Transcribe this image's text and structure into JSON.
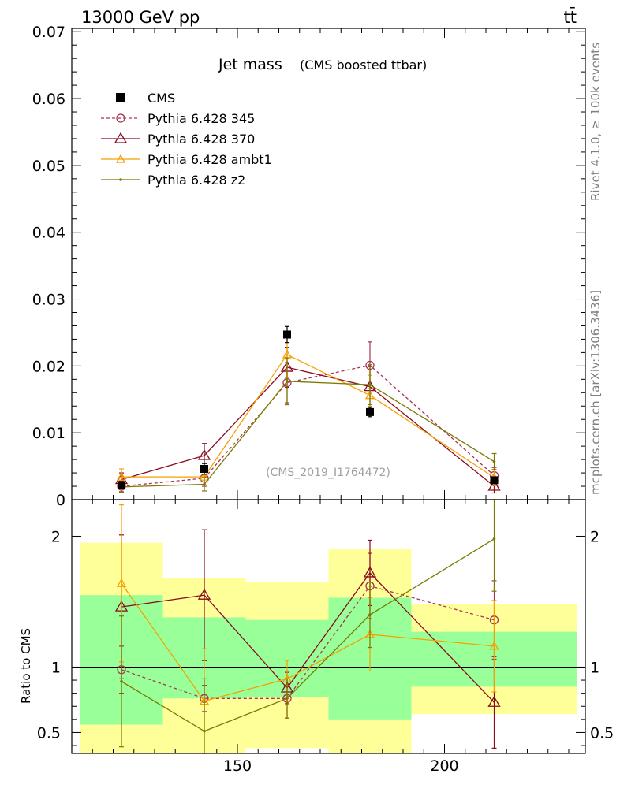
{
  "header": {
    "beam_label": "13000 GeV pp",
    "process_label": "tt̄"
  },
  "side_text": {
    "rivet": "Rivet 4.1.0, ≥ 100k events",
    "source": "mcplots.cern.ch [arXiv:1306.3436]"
  },
  "colors": {
    "cms": "#000000",
    "p345": "#a63452",
    "p370": "#8b0a1f",
    "ambt1": "#f5a000",
    "z2": "#7a7a00",
    "band_green": "#99ff99",
    "band_yellow": "#ffff99"
  },
  "chart_data": [
    {
      "type": "line",
      "title": "Jet mass",
      "subtitle": "(CMS boosted ttbar)",
      "watermark": "(CMS_2019_I1764472)",
      "xlabel": "",
      "ylabel": "",
      "xlim": [
        110,
        234
      ],
      "ylim": [
        0,
        0.0705
      ],
      "yticks": [
        0,
        0.01,
        0.02,
        0.03,
        0.04,
        0.05,
        0.06,
        0.07
      ],
      "ytick_labels": [
        "0",
        "0.01",
        "0.02",
        "0.03",
        "0.04",
        "0.05",
        "0.06",
        "0.07"
      ],
      "x": [
        122,
        142,
        162,
        182,
        212
      ],
      "bin_edges": [
        112,
        132,
        152,
        172,
        192,
        232
      ],
      "data": {
        "name": "CMS",
        "values": [
          0.0022,
          0.0046,
          0.0247,
          0.0131,
          0.0029
        ],
        "errors": [
          0.0004,
          0.0008,
          0.0012,
          0.0007,
          0.0004
        ]
      },
      "series": [
        {
          "key": "p345",
          "name": "Pythia 6.428 345",
          "values": [
            0.002,
            0.0032,
            0.0175,
            0.0201,
            0.0036
          ],
          "errors": [
            0.0008,
            0.0012,
            0.003,
            0.0035,
            0.0012
          ],
          "marker": "circle",
          "dash": "4,3"
        },
        {
          "key": "p370",
          "name": "Pythia 6.428 370",
          "values": [
            0.003,
            0.0066,
            0.0198,
            0.0169,
            0.002
          ],
          "errors": [
            0.001,
            0.0018,
            0.003,
            0.003,
            0.001
          ],
          "marker": "triangle",
          "dash": ""
        },
        {
          "key": "ambt1",
          "name": "Pythia 6.428 ambt1",
          "values": [
            0.0034,
            0.0034,
            0.0217,
            0.0156,
            0.0033
          ],
          "errors": [
            0.0012,
            0.0012,
            0.0035,
            0.003,
            0.0012
          ],
          "marker": "triangle-small",
          "dash": ""
        },
        {
          "key": "z2",
          "name": "Pythia 6.428 z2",
          "values": [
            0.0019,
            0.0023,
            0.0177,
            0.0172,
            0.0057
          ],
          "errors": [
            0.0008,
            0.001,
            0.0035,
            0.003,
            0.0012
          ],
          "marker": "dot",
          "dash": ""
        }
      ]
    },
    {
      "type": "line",
      "title": "",
      "xlabel": "",
      "ylabel": "Ratio to CMS",
      "xlim": [
        110,
        234
      ],
      "ylim": [
        0.34,
        2.28
      ],
      "xticks": [
        150,
        200
      ],
      "xtick_labels": [
        "150",
        "200"
      ],
      "yticks": [
        0.5,
        1,
        2
      ],
      "ytick_labels": [
        "0.5",
        "1",
        "2"
      ],
      "bands": [
        {
          "x0": 112,
          "x1": 132,
          "green": [
            0.56,
            1.55
          ],
          "yellow": [
            0.3,
            1.95
          ]
        },
        {
          "x0": 132,
          "x1": 152,
          "green": [
            0.76,
            1.38
          ],
          "yellow": [
            0.3,
            1.68
          ]
        },
        {
          "x0": 152,
          "x1": 172,
          "green": [
            0.77,
            1.36
          ],
          "yellow": [
            0.38,
            1.65
          ]
        },
        {
          "x0": 172,
          "x1": 192,
          "green": [
            0.6,
            1.53
          ],
          "yellow": [
            0.3,
            1.9
          ]
        },
        {
          "x0": 192,
          "x1": 232,
          "green": [
            0.85,
            1.27
          ],
          "yellow": [
            0.64,
            1.48
          ]
        }
      ],
      "series": [
        {
          "key": "p345",
          "name": "Pythia 6.428 345",
          "values": [
            0.98,
            0.76,
            0.76,
            1.62,
            1.36
          ],
          "errors": [
            0.18,
            0.1,
            0.15,
            0.25,
            0.3
          ]
        },
        {
          "key": "p370",
          "name": "Pythia 6.428 370",
          "values": [
            1.46,
            1.55,
            0.84,
            1.72,
            0.73
          ],
          "errors": [
            0.55,
            0.5,
            0.12,
            0.25,
            0.35
          ]
        },
        {
          "key": "ambt1",
          "name": "Pythia 6.428 ambt1",
          "values": [
            1.64,
            0.74,
            0.91,
            1.25,
            1.16
          ],
          "errors": [
            0.6,
            0.4,
            0.14,
            0.28,
            0.35
          ]
        },
        {
          "key": "z2",
          "name": "Pythia 6.428 z2",
          "values": [
            0.89,
            0.51,
            0.76,
            1.4,
            1.98
          ],
          "errors": [
            0.5,
            0.4,
            0.15,
            0.25,
            0.4
          ]
        }
      ]
    }
  ]
}
